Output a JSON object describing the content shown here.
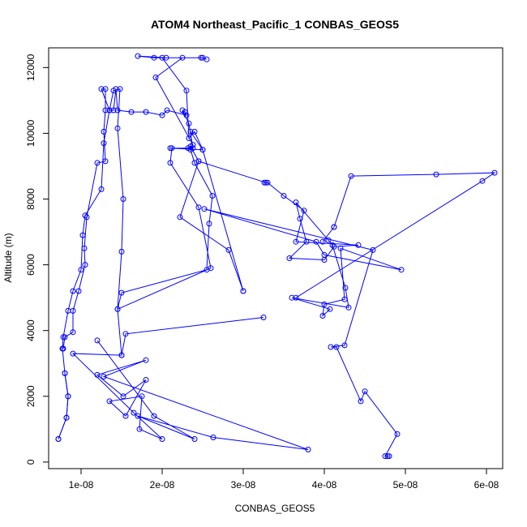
{
  "chart_data": {
    "type": "scatter",
    "title": "ATOM4 Northeast_Pacific_1 CONBAS_GEOS5",
    "xlabel": "CONBAS_GEOS5",
    "ylabel": "Altitude (m)",
    "xlim": [
      6e-09,
      6.2e-08
    ],
    "ylim": [
      -200,
      12600
    ],
    "x_ticks": [
      1e-08,
      2e-08,
      3e-08,
      4e-08,
      5e-08,
      6e-08
    ],
    "x_tick_labels": [
      "1e-08",
      "2e-08",
      "3e-08",
      "4e-08",
      "5e-08",
      "6e-08"
    ],
    "y_ticks": [
      0,
      2000,
      4000,
      6000,
      8000,
      10000,
      12000
    ],
    "y_tick_labels": [
      "0",
      "2000",
      "4000",
      "6000",
      "8000",
      "10000",
      "12000"
    ],
    "grid": false,
    "marker": "open-circle",
    "color": "#0000ff",
    "series": [
      {
        "points": [
          [
            7.2e-09,
            700
          ],
          [
            8.2e-09,
            1350
          ],
          [
            8.4e-09,
            2000
          ],
          [
            8e-09,
            2700
          ],
          [
            7.7e-09,
            3450
          ],
          [
            7.8e-09,
            3800
          ],
          [
            8.4e-09,
            4600
          ],
          [
            9e-09,
            5200
          ],
          [
            1e-08,
            5850
          ],
          [
            1.02e-08,
            6900
          ],
          [
            1.05e-08,
            7500
          ],
          [
            1.25e-08,
            8300
          ],
          [
            1.28e-08,
            9700
          ],
          [
            1.35e-08,
            10700
          ],
          [
            1.25e-08,
            11350
          ],
          [
            1.3e-08,
            11350
          ],
          [
            1.3e-08,
            10700
          ],
          [
            1.28e-08,
            10050
          ],
          [
            1.3e-08,
            9150
          ],
          [
            1.2e-08,
            9100
          ],
          [
            1.07e-08,
            7450
          ],
          [
            1.04e-08,
            6500
          ],
          [
            1.05e-08,
            6000
          ],
          [
            9.7e-09,
            5200
          ],
          [
            9e-09,
            4600
          ],
          [
            9e-09,
            3950
          ],
          [
            8e-09,
            3800
          ],
          [
            7.8e-09,
            3450
          ]
        ]
      },
      {
        "points": [
          [
            8e-09,
            2700
          ],
          [
            8.4e-09,
            2000
          ],
          [
            8.2e-09,
            1350
          ],
          [
            7.2e-09,
            700
          ]
        ]
      },
      {
        "points": [
          [
            1.2e-08,
            3700
          ],
          [
            1.9e-08,
            1400
          ],
          [
            2.4e-08,
            700
          ],
          [
            1.7e-08,
            1400
          ],
          [
            2.63e-08,
            750
          ],
          [
            3.8e-08,
            380
          ],
          [
            1.28e-08,
            2600
          ],
          [
            1.8e-08,
            3100
          ],
          [
            1.2e-08,
            2650
          ],
          [
            1.52e-08,
            2000
          ],
          [
            1.8e-08,
            2500
          ],
          [
            1.55e-08,
            1400
          ],
          [
            1.35e-08,
            1850
          ],
          [
            1.75e-08,
            2000
          ],
          [
            1.72e-08,
            1000
          ],
          [
            2e-08,
            700
          ],
          [
            1.65e-08,
            1500
          ],
          [
            9e-09,
            3300
          ],
          [
            1.5e-08,
            3250
          ],
          [
            1.45e-08,
            4650
          ],
          [
            1.5e-08,
            6400
          ],
          [
            1.52e-08,
            8000
          ],
          [
            1.45e-08,
            10150
          ],
          [
            1.48e-08,
            11350
          ],
          [
            1.4e-08,
            11300
          ],
          [
            1.35e-08,
            10700
          ],
          [
            1.4e-08,
            10700
          ],
          [
            1.43e-08,
            11350
          ],
          [
            1.45e-08,
            10700
          ],
          [
            1.62e-08,
            10650
          ],
          [
            1.8e-08,
            10650
          ],
          [
            2e-08,
            10550
          ],
          [
            2.06e-08,
            10700
          ],
          [
            2.3e-08,
            10550
          ],
          [
            2.28e-08,
            10650
          ],
          [
            2.25e-08,
            10700
          ],
          [
            2.33e-08,
            10300
          ],
          [
            2.38e-08,
            9550
          ],
          [
            2.1e-08,
            9550
          ],
          [
            2.5e-08,
            9500
          ],
          [
            2.4e-08,
            10050
          ],
          [
            2.33e-08,
            9850
          ],
          [
            2.3e-08,
            11300
          ],
          [
            2e-08,
            12300
          ],
          [
            1.9e-08,
            12300
          ],
          [
            1.7e-08,
            12350
          ],
          [
            2.05e-08,
            12300
          ],
          [
            2.48e-08,
            12300
          ],
          [
            2.55e-08,
            12250
          ],
          [
            2.5e-08,
            12300
          ],
          [
            2.25e-08,
            12300
          ],
          [
            1.92e-08,
            11700
          ],
          [
            2.38e-08,
            9650
          ],
          [
            2.35e-08,
            9500
          ],
          [
            2.4e-08,
            9100
          ],
          [
            2.62e-08,
            8100
          ],
          [
            2.58e-08,
            7250
          ],
          [
            2.55e-08,
            5850
          ],
          [
            1.5e-08,
            5150
          ],
          [
            1.45e-08,
            4650
          ],
          [
            2.6e-08,
            5900
          ],
          [
            2.45e-08,
            7750
          ],
          [
            2.1e-08,
            9100
          ],
          [
            2.12e-08,
            9550
          ],
          [
            2.32e-08,
            9550
          ],
          [
            2.35e-08,
            9600
          ],
          [
            2.45e-08,
            9150
          ],
          [
            3.28e-08,
            8500
          ],
          [
            3.26e-08,
            8500
          ],
          [
            3.3e-08,
            8500
          ],
          [
            3.5e-08,
            8100
          ],
          [
            3.75e-08,
            7650
          ],
          [
            3.65e-08,
            6700
          ],
          [
            4.42e-08,
            6600
          ],
          [
            4.12e-08,
            6550
          ],
          [
            4e-08,
            6150
          ],
          [
            3.57e-08,
            6200
          ],
          [
            3.78e-08,
            6700
          ],
          [
            3.7e-08,
            7400
          ],
          [
            3.65e-08,
            7900
          ],
          [
            4.05e-08,
            6750
          ],
          [
            4.1e-08,
            6600
          ],
          [
            4.26e-08,
            5300
          ],
          [
            4.3e-08,
            4700
          ],
          [
            3.6e-08,
            5000
          ],
          [
            4.07e-08,
            4650
          ],
          [
            3.98e-08,
            4450
          ],
          [
            4e-08,
            4800
          ],
          [
            4.25e-08,
            4950
          ],
          [
            4.2e-08,
            6500
          ],
          [
            4.95e-08,
            5850
          ],
          [
            4e-08,
            6300
          ],
          [
            3.9e-08,
            6700
          ],
          [
            2.52e-08,
            7700
          ],
          [
            4.6e-08,
            6450
          ],
          [
            4.25e-08,
            3550
          ],
          [
            4.08e-08,
            3500
          ],
          [
            4.15e-08,
            3500
          ],
          [
            4.45e-08,
            1850
          ],
          [
            4.5e-08,
            2150
          ],
          [
            4.9e-08,
            850
          ],
          [
            4.75e-08,
            180
          ],
          [
            4.8e-08,
            180
          ],
          [
            4.78e-08,
            180
          ]
        ]
      },
      {
        "points": [
          [
            3.25e-08,
            4400
          ],
          [
            1.55e-08,
            3900
          ],
          [
            1.5e-08,
            3250
          ]
        ]
      },
      {
        "points": [
          [
            3e-08,
            5200
          ],
          [
            2.82e-08,
            6450
          ],
          [
            2.22e-08,
            7450
          ],
          [
            2.45e-08,
            9150
          ]
        ]
      },
      {
        "points": [
          [
            3e-08,
            5200
          ],
          [
            2.5e-08,
            9500
          ],
          [
            2.35e-08,
            10050
          ]
        ]
      },
      {
        "points": [
          [
            4.12e-08,
            7150
          ],
          [
            4.33e-08,
            8700
          ],
          [
            5.38e-08,
            8750
          ],
          [
            6.1e-08,
            8800
          ],
          [
            5.95e-08,
            8550
          ],
          [
            3.65e-08,
            5000
          ]
        ]
      },
      {
        "points": [
          [
            4.12e-08,
            7150
          ],
          [
            3.98e-08,
            6700
          ]
        ]
      }
    ]
  }
}
